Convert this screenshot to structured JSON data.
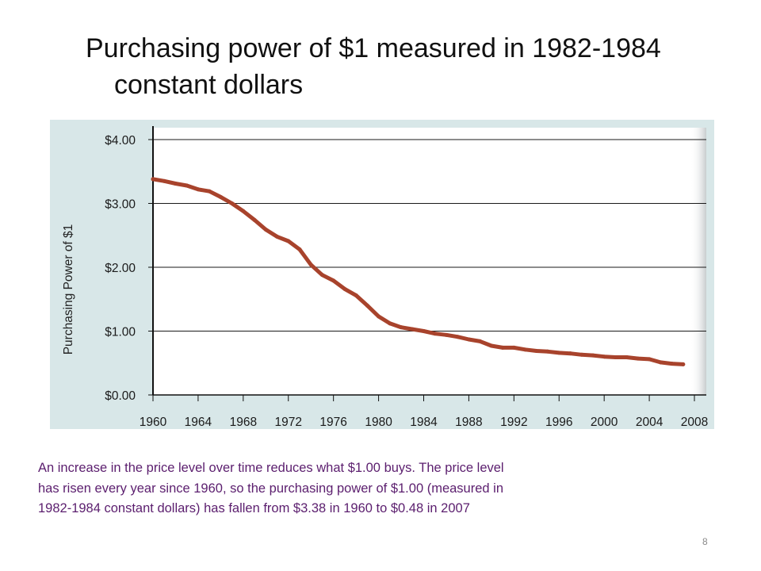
{
  "slide": {
    "title_line1": "Purchasing power of $1 measured in 1982-1984",
    "title_line2": "constant dollars",
    "caption_line1": "An increase in the price level over time reduces what $1.00 buys. The price level",
    "caption_line2": "has risen every year since 1960, so the purchasing power of $1.00 (measured in",
    "caption_line3": "1982-1984 constant dollars) has fallen from $3.38 in 1960 to $0.48 in 2007",
    "page_number": "8"
  },
  "colors": {
    "panel_background": "#d8e7e8",
    "plot_background": "#ffffff",
    "line": "#a8432c",
    "axis": "#111111",
    "caption_text": "#5b1e6e"
  },
  "chart_data": {
    "type": "line",
    "title": "",
    "xlabel": "",
    "ylabel": "Purchasing Power of $1",
    "xlim": [
      1960,
      2008
    ],
    "ylim": [
      0,
      4
    ],
    "grid": true,
    "x_ticks": [
      1960,
      1964,
      1968,
      1972,
      1976,
      1980,
      1984,
      1988,
      1992,
      1996,
      2000,
      2004,
      2008
    ],
    "x_tick_labels": [
      "1960",
      "1964",
      "1968",
      "1972",
      "1976",
      "1980",
      "1984",
      "1988",
      "1992",
      "1996",
      "2000",
      "2004",
      "2008"
    ],
    "y_ticks": [
      0,
      1,
      2,
      3,
      4
    ],
    "y_tick_labels": [
      "$0.00",
      "$1.00",
      "$2.00",
      "$3.00",
      "$4.00"
    ],
    "series": [
      {
        "x": [
          1960,
          1961,
          1962,
          1963,
          1964,
          1965,
          1966,
          1967,
          1968,
          1969,
          1970,
          1971,
          1972,
          1973,
          1974,
          1975,
          1976,
          1977,
          1978,
          1979,
          1980,
          1981,
          1982,
          1983,
          1984,
          1985,
          1986,
          1987,
          1988,
          1989,
          1990,
          1991,
          1992,
          1993,
          1994,
          1995,
          1996,
          1997,
          1998,
          1999,
          2000,
          2001,
          2002,
          2003,
          2004,
          2005,
          2006,
          2007
        ],
        "values": [
          3.38,
          3.35,
          3.31,
          3.28,
          3.22,
          3.19,
          3.1,
          3.0,
          2.88,
          2.74,
          2.59,
          2.48,
          2.41,
          2.28,
          2.04,
          1.88,
          1.79,
          1.66,
          1.56,
          1.4,
          1.23,
          1.12,
          1.06,
          1.03,
          1.0,
          0.96,
          0.94,
          0.91,
          0.87,
          0.84,
          0.77,
          0.74,
          0.74,
          0.71,
          0.69,
          0.68,
          0.66,
          0.65,
          0.63,
          0.62,
          0.6,
          0.59,
          0.59,
          0.57,
          0.56,
          0.51,
          0.49,
          0.48
        ]
      }
    ]
  }
}
